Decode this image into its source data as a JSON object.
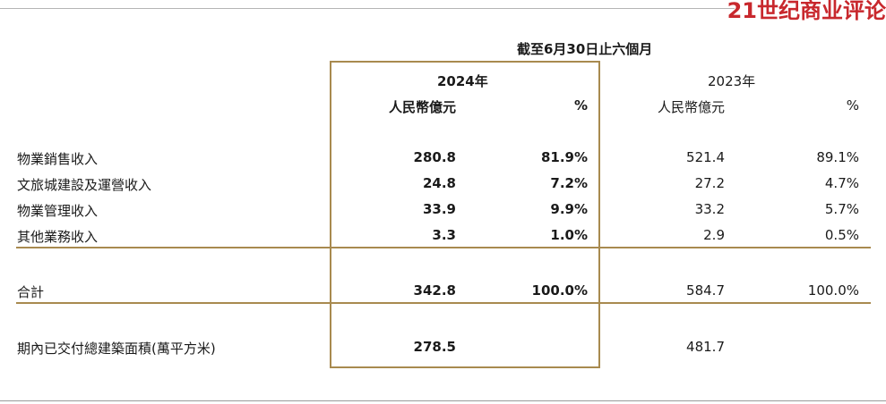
{
  "watermark": "21世纪商业评论",
  "table": {
    "period_header": "截至6月30日止六個月",
    "year_current": "2024年",
    "year_prior": "2023年",
    "unit": "人民幣億元",
    "percent": "%",
    "rows": [
      {
        "label": "物業銷售收入",
        "v2024": "280.8",
        "p2024": "81.9%",
        "v2023": "521.4",
        "p2023": "89.1%"
      },
      {
        "label": "文旅城建設及運營收入",
        "v2024": "24.8",
        "p2024": "7.2%",
        "v2023": "27.2",
        "p2023": "4.7%"
      },
      {
        "label": "物業管理收入",
        "v2024": "33.9",
        "p2024": "9.9%",
        "v2023": "33.2",
        "p2023": "5.7%"
      },
      {
        "label": "其他業務收入",
        "v2024": "3.3",
        "p2024": "1.0%",
        "v2023": "2.9",
        "p2023": "0.5%"
      }
    ],
    "total": {
      "label": "合計",
      "v2024": "342.8",
      "p2024": "100.0%",
      "v2023": "584.7",
      "p2023": "100.0%"
    },
    "area": {
      "label": "期內已交付總建築面積(萬平方米)",
      "v2024": "278.5",
      "v2023": "481.7"
    }
  },
  "colors": {
    "accent": "#a88a4f",
    "watermark": "#c8282d"
  }
}
